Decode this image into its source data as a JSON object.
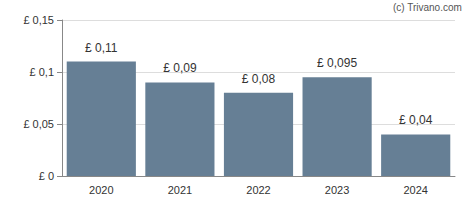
{
  "chart_data": {
    "type": "bar",
    "annotations": [
      "(c) Trivano.com"
    ],
    "categories": [
      "2020",
      "2021",
      "2022",
      "2023",
      "2024"
    ],
    "values": [
      0.11,
      0.09,
      0.08,
      0.095,
      0.04
    ],
    "value_labels": [
      "£ 0,11",
      "£ 0,09",
      "£ 0,08",
      "£ 0,095",
      "£ 0,04"
    ],
    "color": "#667f95",
    "ylim": [
      0,
      0.15
    ],
    "yticks": [
      {
        "value": 0,
        "label": "£ 0"
      },
      {
        "value": 0.05,
        "label": "£ 0,05"
      },
      {
        "value": 0.1,
        "label": "£ 0,1"
      },
      {
        "value": 0.15,
        "label": "£ 0,15"
      }
    ],
    "grid": true,
    "data_labels": true
  }
}
